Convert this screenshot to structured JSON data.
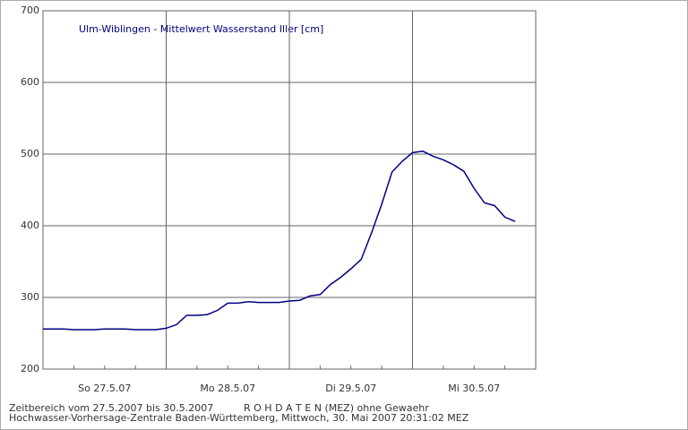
{
  "chart_data": {
    "type": "line",
    "title": "Ulm-Wiblingen - Mittelwert Wasserstand Iller [cm]",
    "categories": [
      null,
      null,
      null,
      null,
      null,
      null,
      "So 27.5.07",
      null,
      null,
      null,
      null,
      null,
      null,
      null,
      null,
      null,
      null,
      null,
      "Mo 28.5.07",
      null,
      null,
      null,
      null,
      null,
      null,
      null,
      null,
      null,
      null,
      null,
      "Di 29.5.07",
      null,
      null,
      null,
      null,
      null,
      null,
      null,
      null,
      null,
      null,
      null,
      "Mi 30.5.07",
      null,
      null,
      null,
      null,
      null,
      null
    ],
    "series": [
      {
        "name": "Wasserstand",
        "color": "#000080",
        "values": [
          256,
          256,
          256,
          255,
          255,
          255,
          256,
          256,
          256,
          255,
          255,
          255,
          257,
          262,
          275,
          275,
          276,
          282,
          292,
          292,
          294,
          293,
          293,
          293,
          295,
          296,
          302,
          304,
          318,
          328,
          340,
          353,
          390,
          430,
          475,
          490,
          502,
          504,
          497,
          492,
          485,
          476,
          452,
          432,
          428,
          412,
          406,
          null,
          null
        ]
      }
    ],
    "ylim": [
      200,
      700
    ],
    "yticks": [
      200,
      300,
      400,
      500,
      600,
      700
    ],
    "grid": true,
    "footer": [
      "Zeitbereich vom 27.5.2007 bis 30.5.2007",
      "R O H D A T E N (MEZ) ohne Gewaehr",
      "Hochwasser-Vorhersage-Zentrale Baden-Württemberg, Mittwoch, 30. Mai 2007 20:31:02 MEZ"
    ]
  }
}
